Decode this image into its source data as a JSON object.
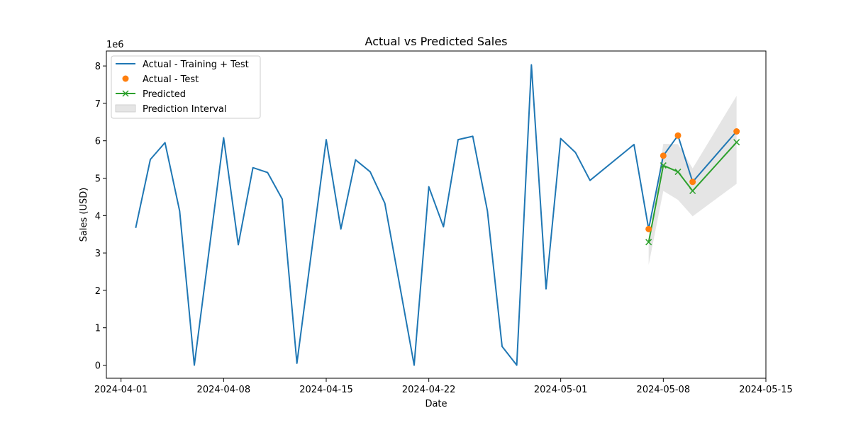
{
  "chart_data": {
    "type": "line",
    "title": "Actual vs Predicted Sales",
    "xlabel": "Date",
    "ylabel": "Sales (USD)",
    "y_offset_label": "1e6",
    "y_scale_factor": 1000000,
    "xlim": [
      "2024-03-31",
      "2024-05-15"
    ],
    "ylim": [
      -350000,
      8400000
    ],
    "x_ticks": [
      "2024-04-01",
      "2024-04-08",
      "2024-04-15",
      "2024-04-22",
      "2024-05-01",
      "2024-05-08",
      "2024-05-15"
    ],
    "y_ticks": [
      0,
      1000000,
      2000000,
      3000000,
      4000000,
      5000000,
      6000000,
      7000000,
      8000000
    ],
    "y_tick_labels": [
      "0",
      "1",
      "2",
      "3",
      "4",
      "5",
      "6",
      "7",
      "8"
    ],
    "grid": false,
    "legend_position": "top-left",
    "series": [
      {
        "name": "Actual - Training + Test",
        "kind": "line",
        "color": "#1f77b4",
        "points": [
          [
            "2024-04-02",
            3670000
          ],
          [
            "2024-04-03",
            5500000
          ],
          [
            "2024-04-04",
            5950000
          ],
          [
            "2024-04-05",
            4120000
          ],
          [
            "2024-04-06",
            0
          ],
          [
            "2024-04-08",
            6080000
          ],
          [
            "2024-04-09",
            3220000
          ],
          [
            "2024-04-10",
            5280000
          ],
          [
            "2024-04-11",
            5150000
          ],
          [
            "2024-04-12",
            4440000
          ],
          [
            "2024-04-13",
            50000
          ],
          [
            "2024-04-15",
            6030000
          ],
          [
            "2024-04-16",
            3640000
          ],
          [
            "2024-04-17",
            5490000
          ],
          [
            "2024-04-18",
            5170000
          ],
          [
            "2024-04-19",
            4330000
          ],
          [
            "2024-04-21",
            0
          ],
          [
            "2024-04-22",
            4770000
          ],
          [
            "2024-04-23",
            3700000
          ],
          [
            "2024-04-24",
            6030000
          ],
          [
            "2024-04-25",
            6120000
          ],
          [
            "2024-04-26",
            4120000
          ],
          [
            "2024-04-27",
            500000
          ],
          [
            "2024-04-28",
            0
          ],
          [
            "2024-04-29",
            8030000
          ],
          [
            "2024-04-30",
            2040000
          ],
          [
            "2024-05-01",
            6060000
          ],
          [
            "2024-05-02",
            5690000
          ],
          [
            "2024-05-03",
            4940000
          ],
          [
            "2024-05-06",
            5900000
          ],
          [
            "2024-05-07",
            3640000
          ],
          [
            "2024-05-08",
            5600000
          ],
          [
            "2024-05-09",
            6140000
          ],
          [
            "2024-05-10",
            4900000
          ],
          [
            "2024-05-13",
            6250000
          ]
        ]
      },
      {
        "name": "Actual - Test",
        "kind": "scatter",
        "color": "#ff7f0e",
        "points": [
          [
            "2024-05-07",
            3640000
          ],
          [
            "2024-05-08",
            5600000
          ],
          [
            "2024-05-09",
            6140000
          ],
          [
            "2024-05-10",
            4900000
          ],
          [
            "2024-05-13",
            6250000
          ]
        ]
      },
      {
        "name": "Predicted",
        "kind": "line-x",
        "color": "#2ca02c",
        "points": [
          [
            "2024-05-07",
            3290000
          ],
          [
            "2024-05-08",
            5340000
          ],
          [
            "2024-05-09",
            5170000
          ],
          [
            "2024-05-10",
            4660000
          ],
          [
            "2024-05-13",
            5960000
          ]
        ]
      },
      {
        "name": "Prediction Interval",
        "kind": "band",
        "color": "#d3d3d3",
        "points": [
          [
            "2024-05-07",
            2680000,
            3210000
          ],
          [
            "2024-05-08",
            4660000,
            5920000
          ],
          [
            "2024-05-09",
            4420000,
            5910000
          ],
          [
            "2024-05-10",
            3980000,
            5260000
          ],
          [
            "2024-05-13",
            4850000,
            7200000
          ]
        ]
      }
    ]
  }
}
